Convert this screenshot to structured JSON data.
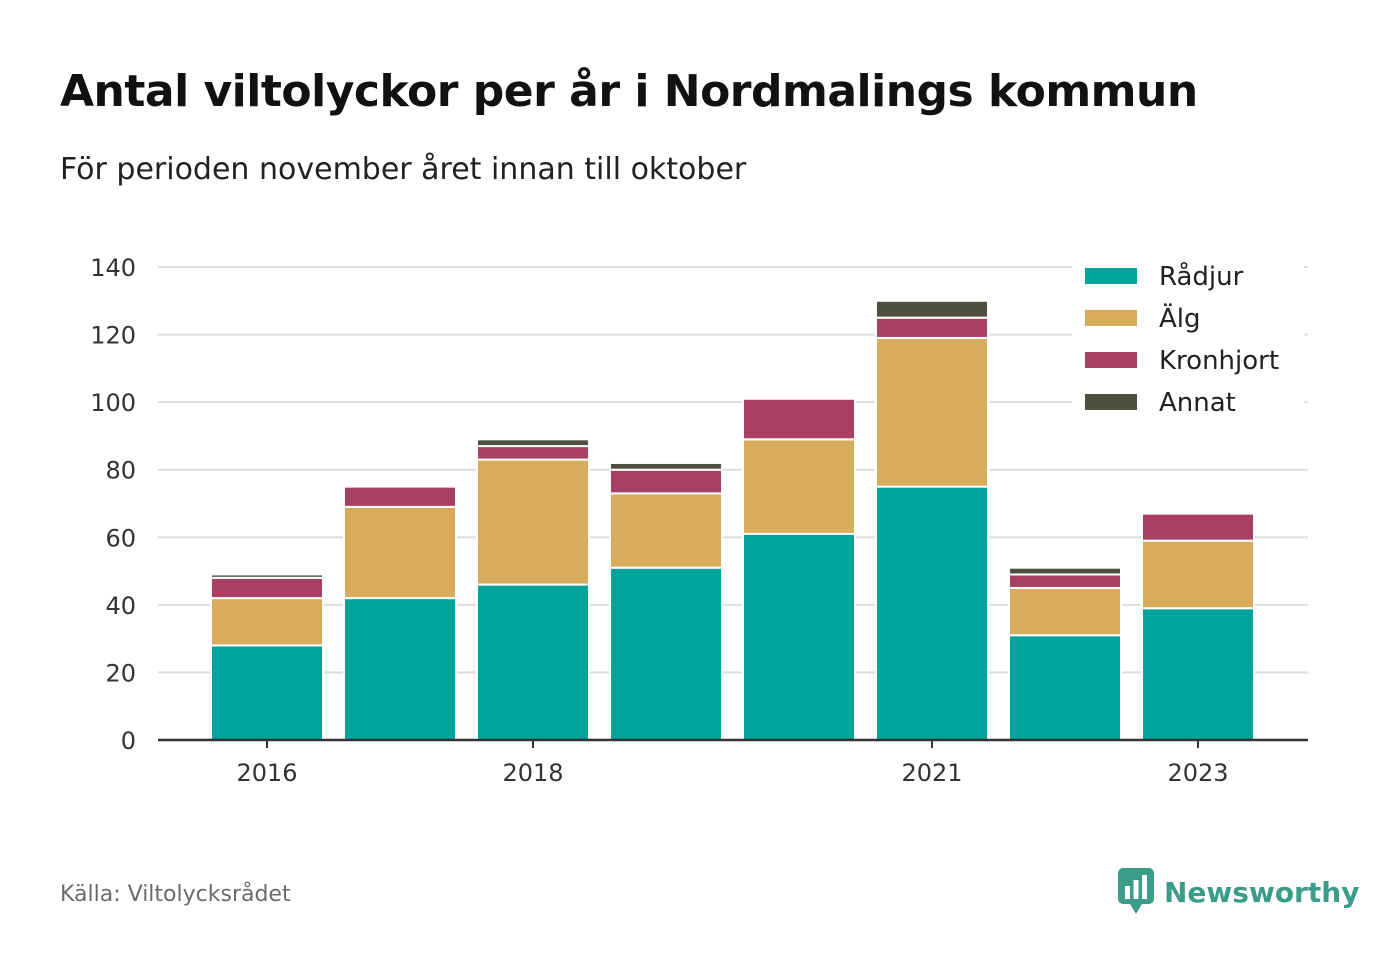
{
  "title": "Antal viltolyckor per år i Nordmalings kommun",
  "subtitle": "För perioden november året innan till oktober",
  "source": "Källa: Viltolycksrådet",
  "brand": {
    "name": "Newsworthy",
    "icon": "newsworthy-logo-icon",
    "color": "#3b9c8a"
  },
  "chart_data": {
    "type": "bar",
    "stacked": true,
    "categories": [
      "2016",
      "2017",
      "2018",
      "2019",
      "2020",
      "2021",
      "2022",
      "2023"
    ],
    "x_tick_labels": [
      "2016",
      "",
      "2018",
      "",
      "",
      "2021",
      "",
      "2023"
    ],
    "series": [
      {
        "name": "Rådjur",
        "color": "#00a39a",
        "values": [
          28,
          42,
          46,
          51,
          61,
          75,
          31,
          39
        ]
      },
      {
        "name": "Älg",
        "color": "#d9ac5c",
        "values": [
          14,
          27,
          37,
          22,
          28,
          44,
          14,
          20
        ]
      },
      {
        "name": "Kronhjort",
        "color": "#a84066",
        "values": [
          6,
          6,
          4,
          7,
          12,
          6,
          4,
          8
        ]
      },
      {
        "name": "Annat",
        "color": "#4e4f3e",
        "values": [
          1,
          0,
          2,
          2,
          0,
          5,
          2,
          0
        ]
      }
    ],
    "ylim": [
      0,
      140
    ],
    "yticks": [
      0,
      20,
      40,
      60,
      80,
      100,
      120,
      140
    ],
    "grid": true,
    "legend": "top-right",
    "xlabel": "",
    "ylabel": ""
  }
}
